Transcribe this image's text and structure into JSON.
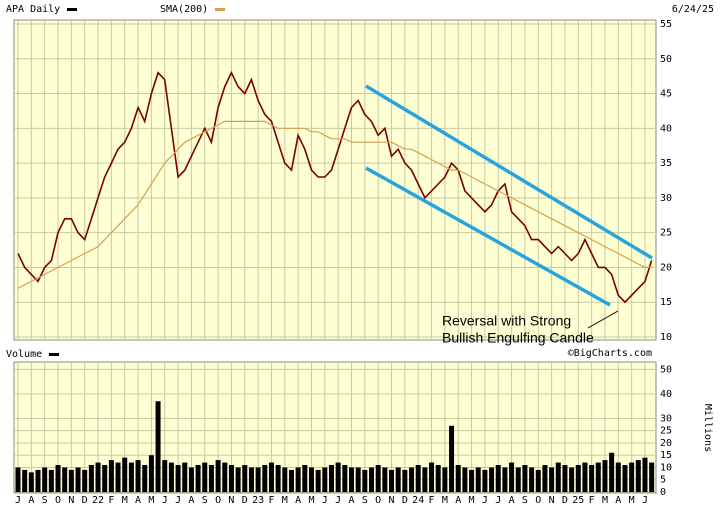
{
  "chart_data": [
    {
      "type": "line",
      "title": "APA Daily",
      "date": "6/24/25",
      "series": [
        {
          "name": "APA Daily",
          "color": "#7a0000",
          "values": [
            22,
            20,
            19,
            18,
            20,
            21,
            25,
            27,
            27,
            25,
            24,
            27,
            30,
            33,
            35,
            37,
            38,
            40,
            43,
            41,
            45,
            48,
            47,
            40,
            33,
            34,
            36,
            38,
            40,
            38,
            43,
            46,
            48,
            46,
            45,
            47,
            44,
            42,
            41,
            38,
            35,
            34,
            39,
            37,
            34,
            33,
            33,
            34,
            37,
            40,
            43,
            44,
            42,
            41,
            39,
            40,
            36,
            37,
            35,
            34,
            32,
            30,
            31,
            32,
            33,
            35,
            34,
            31,
            30,
            29,
            28,
            29,
            31,
            32,
            28,
            27,
            26,
            24,
            24,
            23,
            22,
            23,
            22,
            21,
            22,
            24,
            22,
            20,
            20,
            19,
            16,
            15,
            16,
            17,
            18,
            21
          ]
        },
        {
          "name": "SMA(200)",
          "color": "#d4a050",
          "values": [
            17,
            17.5,
            18,
            18.5,
            19,
            19.5,
            20,
            20.5,
            21,
            21.5,
            22,
            22.5,
            23,
            24,
            25,
            26,
            27,
            28,
            29,
            30.5,
            32,
            33.5,
            35,
            36,
            37,
            38,
            38.5,
            39,
            39.5,
            40,
            40.5,
            41,
            41,
            41,
            41,
            41,
            41,
            41,
            40.5,
            40,
            40,
            40,
            40,
            40,
            39.5,
            39.5,
            39,
            38.5,
            38.5,
            38.5,
            38,
            38,
            38,
            38,
            38,
            38,
            38,
            37.5,
            37,
            37,
            36.5,
            36,
            35.5,
            35,
            34.5,
            34,
            34,
            33.5,
            33,
            32.5,
            32,
            31.5,
            31,
            30.5,
            30,
            29.5,
            29,
            28.5,
            28,
            27.5,
            27,
            26.5,
            26,
            25.5,
            25,
            24.5,
            24,
            23.5,
            23,
            22.5,
            22,
            21.5,
            21,
            20.5,
            20,
            20
          ]
        }
      ],
      "ylim": [
        10,
        55
      ],
      "yticks": [
        10,
        15,
        20,
        25,
        30,
        35,
        40,
        45,
        50,
        55
      ],
      "grid": true,
      "annotation": [
        "Reversal with Strong",
        "Bullish Engulfing Candle"
      ]
    },
    {
      "type": "bar",
      "title": "Volume",
      "y_label": "Millions",
      "color": "#000000",
      "categories": [
        "J",
        null,
        "A",
        null,
        "S",
        null,
        "O",
        null,
        "N",
        null,
        "D",
        null,
        "22",
        null,
        "F",
        null,
        "M",
        null,
        "A",
        null,
        "M",
        null,
        "J",
        null,
        "J",
        null,
        "A",
        null,
        "S",
        null,
        "O",
        null,
        "N",
        null,
        "D",
        null,
        "23",
        null,
        "F",
        null,
        "M",
        null,
        "A",
        null,
        "M",
        null,
        "J",
        null,
        "J",
        null,
        "A",
        null,
        "S",
        null,
        "O",
        null,
        "N",
        null,
        "D",
        null,
        "24",
        null,
        "F",
        null,
        "M",
        null,
        "A",
        null,
        "M",
        null,
        "J",
        null,
        "J",
        null,
        "A",
        null,
        "S",
        null,
        "O",
        null,
        "N",
        null,
        "D",
        null,
        "25",
        null,
        "F",
        null,
        "M",
        null,
        "A",
        null,
        "M",
        null,
        "J",
        null
      ],
      "values": [
        10,
        9,
        8,
        9,
        10,
        9,
        11,
        10,
        9,
        10,
        9,
        11,
        12,
        11,
        13,
        12,
        14,
        12,
        13,
        11,
        15,
        37,
        13,
        12,
        11,
        12,
        10,
        11,
        12,
        11,
        13,
        12,
        11,
        10,
        11,
        10,
        10,
        11,
        12,
        11,
        10,
        9,
        10,
        11,
        10,
        9,
        10,
        11,
        12,
        11,
        10,
        10,
        9,
        10,
        11,
        10,
        9,
        10,
        9,
        10,
        11,
        10,
        12,
        11,
        10,
        27,
        11,
        10,
        9,
        10,
        9,
        10,
        11,
        10,
        12,
        10,
        11,
        10,
        9,
        11,
        10,
        12,
        11,
        10,
        11,
        12,
        11,
        12,
        13,
        16,
        12,
        11,
        12,
        13,
        14,
        12
      ],
      "ylim": [
        0,
        53
      ],
      "yticks": [
        0,
        5,
        10,
        15,
        20,
        25,
        30,
        40,
        50
      ],
      "grid": true
    }
  ],
  "source": "©BigCharts.com"
}
